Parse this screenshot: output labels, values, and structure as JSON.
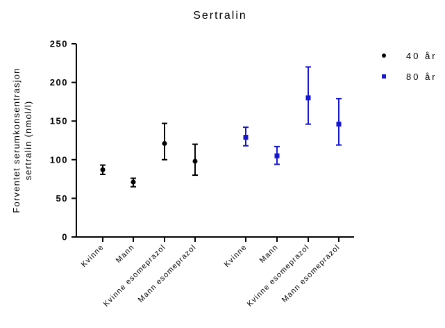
{
  "chart_data": {
    "type": "scatter",
    "title": "Sertralin",
    "ylabel": "Forventet serumkonsentrasjon sertralin (nmol/l)",
    "ylabel_lines": [
      "Forventet serumkonsentrasjon",
      "sertralin (nmol/l)"
    ],
    "xlabel": "",
    "ylim": [
      0,
      250
    ],
    "yticks": [
      0,
      50,
      100,
      150,
      200,
      250
    ],
    "grid": false,
    "legend_position": "top-right",
    "categories": [
      "Kvinne",
      "Mann",
      "Kvinne esomeprazol",
      "Mann esomeprazol",
      "Kvinne",
      "Mann",
      "Kvinne esomeprazol",
      "Mann esomeprazol"
    ],
    "series": [
      {
        "name": "40 år",
        "color": "#000000",
        "marker": "circle",
        "points": [
          {
            "category_index": 0,
            "y": 87,
            "y_low": 81,
            "y_high": 93
          },
          {
            "category_index": 1,
            "y": 71,
            "y_low": 65,
            "y_high": 76
          },
          {
            "category_index": 2,
            "y": 121,
            "y_low": 100,
            "y_high": 147
          },
          {
            "category_index": 3,
            "y": 98,
            "y_low": 80,
            "y_high": 120
          }
        ]
      },
      {
        "name": "80 år",
        "color": "#1414d2",
        "marker": "square",
        "points": [
          {
            "category_index": 4,
            "y": 129,
            "y_low": 118,
            "y_high": 142
          },
          {
            "category_index": 5,
            "y": 105,
            "y_low": 94,
            "y_high": 117
          },
          {
            "category_index": 6,
            "y": 180,
            "y_low": 146,
            "y_high": 220
          },
          {
            "category_index": 7,
            "y": 146,
            "y_low": 119,
            "y_high": 179
          }
        ]
      }
    ]
  }
}
